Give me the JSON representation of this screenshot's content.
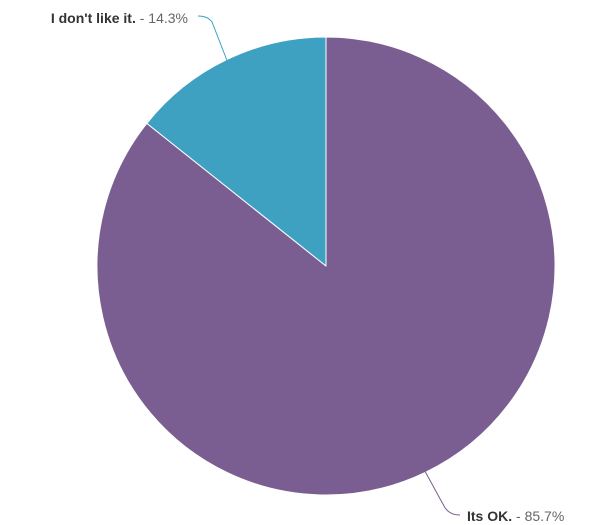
{
  "chart_data": {
    "type": "pie",
    "title": "",
    "legend": "none",
    "slices": [
      {
        "label": "Its OK.",
        "value": 85.7,
        "value_text": "85.7%",
        "color": "#7b5e91"
      },
      {
        "label": "I don't like it.",
        "value": 14.3,
        "value_text": "14.3%",
        "color": "#3fa1c1"
      }
    ]
  }
}
